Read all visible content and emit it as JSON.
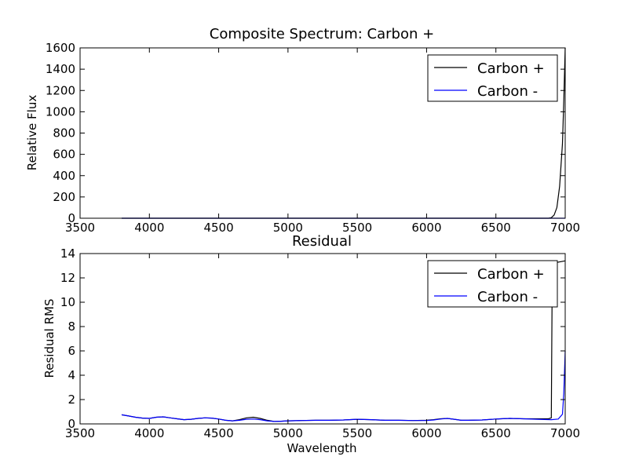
{
  "chart_data": [
    {
      "type": "line",
      "title": "Composite Spectrum: Carbon +",
      "xlabel": "",
      "ylabel": "Relative Flux",
      "xlim": [
        3500,
        7000
      ],
      "ylim": [
        0,
        1600
      ],
      "xticks": [
        "3500",
        "4000",
        "4500",
        "5000",
        "5500",
        "6000",
        "6500",
        "7000"
      ],
      "yticks": [
        "0",
        "200",
        "400",
        "600",
        "800",
        "1000",
        "1200",
        "1400",
        "1600"
      ],
      "grid": false,
      "legend_position": "top-right",
      "series": [
        {
          "name": "Carbon +",
          "color": "#000000",
          "x": [
            3800,
            4500,
            5500,
            6500,
            6880,
            6900,
            6920,
            6940,
            6960,
            6980,
            6990,
            7000
          ],
          "y": [
            0,
            0,
            0,
            0,
            0,
            5,
            30,
            100,
            300,
            700,
            1100,
            1600
          ]
        },
        {
          "name": "Carbon -",
          "color": "#0000ff",
          "x": [
            3800,
            4500,
            5500,
            6500,
            6900,
            7000
          ],
          "y": [
            0,
            0,
            0,
            0,
            0,
            0
          ]
        }
      ]
    },
    {
      "type": "line",
      "title": "Residual",
      "xlabel": "Wavelength",
      "ylabel": "Residual RMS",
      "xlim": [
        3500,
        7000
      ],
      "ylim": [
        0,
        14
      ],
      "xticks": [
        "3500",
        "4000",
        "4500",
        "5000",
        "5500",
        "6000",
        "6500",
        "7000"
      ],
      "yticks": [
        "0",
        "2",
        "4",
        "6",
        "8",
        "10",
        "12",
        "14"
      ],
      "grid": false,
      "legend_position": "top-right",
      "series": [
        {
          "name": "Carbon +",
          "color": "#000000",
          "x": [
            3800,
            3850,
            3900,
            3950,
            4000,
            4050,
            4100,
            4150,
            4200,
            4250,
            4300,
            4350,
            4400,
            4450,
            4500,
            4550,
            4600,
            4650,
            4700,
            4750,
            4800,
            4850,
            4900,
            4950,
            5000,
            5100,
            5200,
            5300,
            5400,
            5500,
            5600,
            5700,
            5800,
            5900,
            6000,
            6050,
            6100,
            6150,
            6200,
            6250,
            6300,
            6400,
            6500,
            6600,
            6700,
            6800,
            6880,
            6900,
            6905,
            6910,
            6920,
            6950,
            7000
          ],
          "y": [
            0.75,
            0.65,
            0.55,
            0.48,
            0.45,
            0.55,
            0.58,
            0.5,
            0.42,
            0.35,
            0.38,
            0.45,
            0.5,
            0.48,
            0.4,
            0.3,
            0.25,
            0.35,
            0.5,
            0.55,
            0.45,
            0.3,
            0.2,
            0.22,
            0.25,
            0.28,
            0.3,
            0.3,
            0.32,
            0.38,
            0.35,
            0.3,
            0.3,
            0.28,
            0.3,
            0.35,
            0.42,
            0.45,
            0.38,
            0.3,
            0.3,
            0.32,
            0.4,
            0.45,
            0.42,
            0.42,
            0.42,
            0.5,
            9.5,
            12.8,
            13.2,
            13.3,
            13.4
          ]
        },
        {
          "name": "Carbon -",
          "color": "#0000ff",
          "x": [
            3800,
            3850,
            3900,
            3950,
            4000,
            4050,
            4100,
            4150,
            4200,
            4250,
            4300,
            4350,
            4400,
            4450,
            4500,
            4550,
            4600,
            4650,
            4700,
            4750,
            4800,
            4850,
            4900,
            4950,
            5000,
            5100,
            5200,
            5300,
            5400,
            5500,
            5600,
            5700,
            5800,
            5900,
            6000,
            6050,
            6100,
            6150,
            6200,
            6250,
            6300,
            6400,
            6500,
            6600,
            6700,
            6800,
            6900,
            6950,
            6980,
            6990,
            7000
          ],
          "y": [
            0.75,
            0.65,
            0.55,
            0.48,
            0.45,
            0.55,
            0.58,
            0.5,
            0.42,
            0.35,
            0.38,
            0.45,
            0.5,
            0.48,
            0.4,
            0.3,
            0.25,
            0.3,
            0.38,
            0.4,
            0.35,
            0.25,
            0.2,
            0.22,
            0.25,
            0.28,
            0.3,
            0.3,
            0.32,
            0.38,
            0.35,
            0.3,
            0.3,
            0.28,
            0.28,
            0.32,
            0.4,
            0.45,
            0.38,
            0.3,
            0.3,
            0.32,
            0.4,
            0.45,
            0.42,
            0.38,
            0.35,
            0.4,
            0.8,
            2.5,
            6.0
          ]
        }
      ]
    }
  ]
}
